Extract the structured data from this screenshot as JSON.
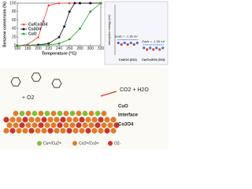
{
  "chart_data": [
    {
      "type": "line",
      "x_label": "Temperature (°C)",
      "y_label": "Benzene conversion (%)",
      "xlim": [
        160,
        320
      ],
      "xticks": [
        160,
        180,
        200,
        220,
        240,
        260,
        280,
        300,
        320
      ],
      "ylim": [
        0,
        100
      ],
      "yticks": [
        0,
        20,
        40,
        60,
        80,
        100
      ],
      "legend": "upper left",
      "series": [
        {
          "name": "Cu/Co3O4",
          "color": "#e8413c",
          "marker": "triangle",
          "x": [
            160,
            180,
            200,
            210,
            220,
            240,
            260,
            280,
            300,
            320
          ],
          "values": [
            0,
            3,
            20,
            58,
            95,
            100,
            100,
            100,
            100,
            100
          ]
        },
        {
          "name": "Co3O4",
          "color": "#111111",
          "marker": "square",
          "x": [
            160,
            200,
            220,
            240,
            250,
            260,
            270,
            280,
            300,
            320
          ],
          "values": [
            0,
            2,
            5,
            20,
            45,
            80,
            100,
            100,
            100,
            100
          ]
        },
        {
          "name": "CuO",
          "color": "#2ca02c",
          "marker": "circle",
          "x": [
            160,
            220,
            240,
            260,
            280,
            300,
            320
          ],
          "values": [
            0,
            2,
            5,
            15,
            40,
            80,
            100
          ]
        }
      ]
    },
    {
      "type": "energy",
      "y_label": "Adsorption energy (eV)",
      "ylim": [
        -2,
        0
      ],
      "categories": [
        "Co3O4 (311)",
        "Cu/Co3O4 (311)"
      ],
      "values": [
        -1.39,
        -1.59
      ],
      "value_labels": [
        "Eads = -1.39 eV",
        "Eads = -1.59 eV"
      ],
      "color": "#1f3fbf"
    }
  ],
  "diagram": {
    "reactant": "+ O2",
    "products": "CO2 + H2O",
    "layers": [
      "CuO",
      "Interface",
      "Co3O4"
    ],
    "legend": [
      "Cu+/Cu2+",
      "Co2+/Co3+",
      "O2-"
    ]
  }
}
